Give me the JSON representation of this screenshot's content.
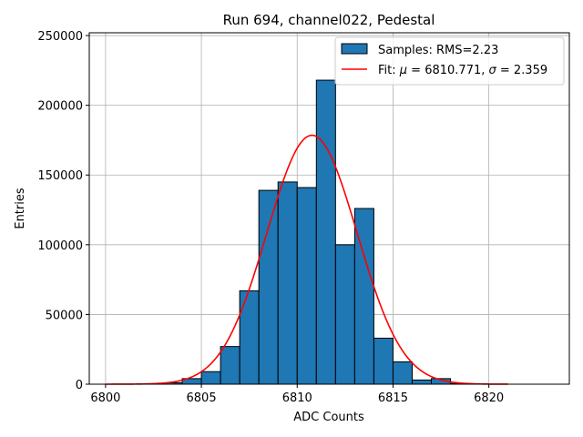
{
  "chart_data": {
    "type": "bar",
    "title": "Run 694, channel022, Pedestal",
    "xlabel": "ADC Counts",
    "ylabel": "Entries",
    "xlim": [
      6799.15,
      6824.2
    ],
    "ylim": [
      0,
      252000
    ],
    "xticks": [
      6800,
      6805,
      6810,
      6815,
      6820
    ],
    "yticks": [
      0,
      50000,
      100000,
      150000,
      200000,
      250000
    ],
    "grid": true,
    "legend_position": "top-right",
    "bar_color": "#1f77b4",
    "fit_color": "#ff0000",
    "histogram": {
      "name": "Samples: RMS=2.23",
      "bins": [
        {
          "x0": 6803,
          "x1": 6804,
          "value": 1000
        },
        {
          "x0": 6804,
          "x1": 6805,
          "value": 4000
        },
        {
          "x0": 6805,
          "x1": 6806,
          "value": 9000
        },
        {
          "x0": 6806,
          "x1": 6807,
          "value": 27000
        },
        {
          "x0": 6807,
          "x1": 6808,
          "value": 67000
        },
        {
          "x0": 6808,
          "x1": 6809,
          "value": 139000
        },
        {
          "x0": 6809,
          "x1": 6810,
          "value": 145000
        },
        {
          "x0": 6810,
          "x1": 6811,
          "value": 141000
        },
        {
          "x0": 6811,
          "x1": 6812,
          "value": 218000
        },
        {
          "x0": 6812,
          "x1": 6813,
          "value": 100000
        },
        {
          "x0": 6813,
          "x1": 6814,
          "value": 126000
        },
        {
          "x0": 6814,
          "x1": 6815,
          "value": 33000
        },
        {
          "x0": 6815,
          "x1": 6816,
          "value": 16000
        },
        {
          "x0": 6816,
          "x1": 6817,
          "value": 3000
        },
        {
          "x0": 6817,
          "x1": 6818,
          "value": 4000
        },
        {
          "x0": 6818,
          "x1": 6819,
          "value": 500
        }
      ]
    },
    "fit": {
      "name_prefix": "Fit: ",
      "mu_symbol": "μ",
      "mu_text": " = 6810.771, ",
      "sigma_symbol": "σ",
      "sigma_text": " = 2.359",
      "mu": 6810.771,
      "sigma": 2.359,
      "amplitude": 178500,
      "x_start": 6800,
      "x_end": 6821
    }
  }
}
